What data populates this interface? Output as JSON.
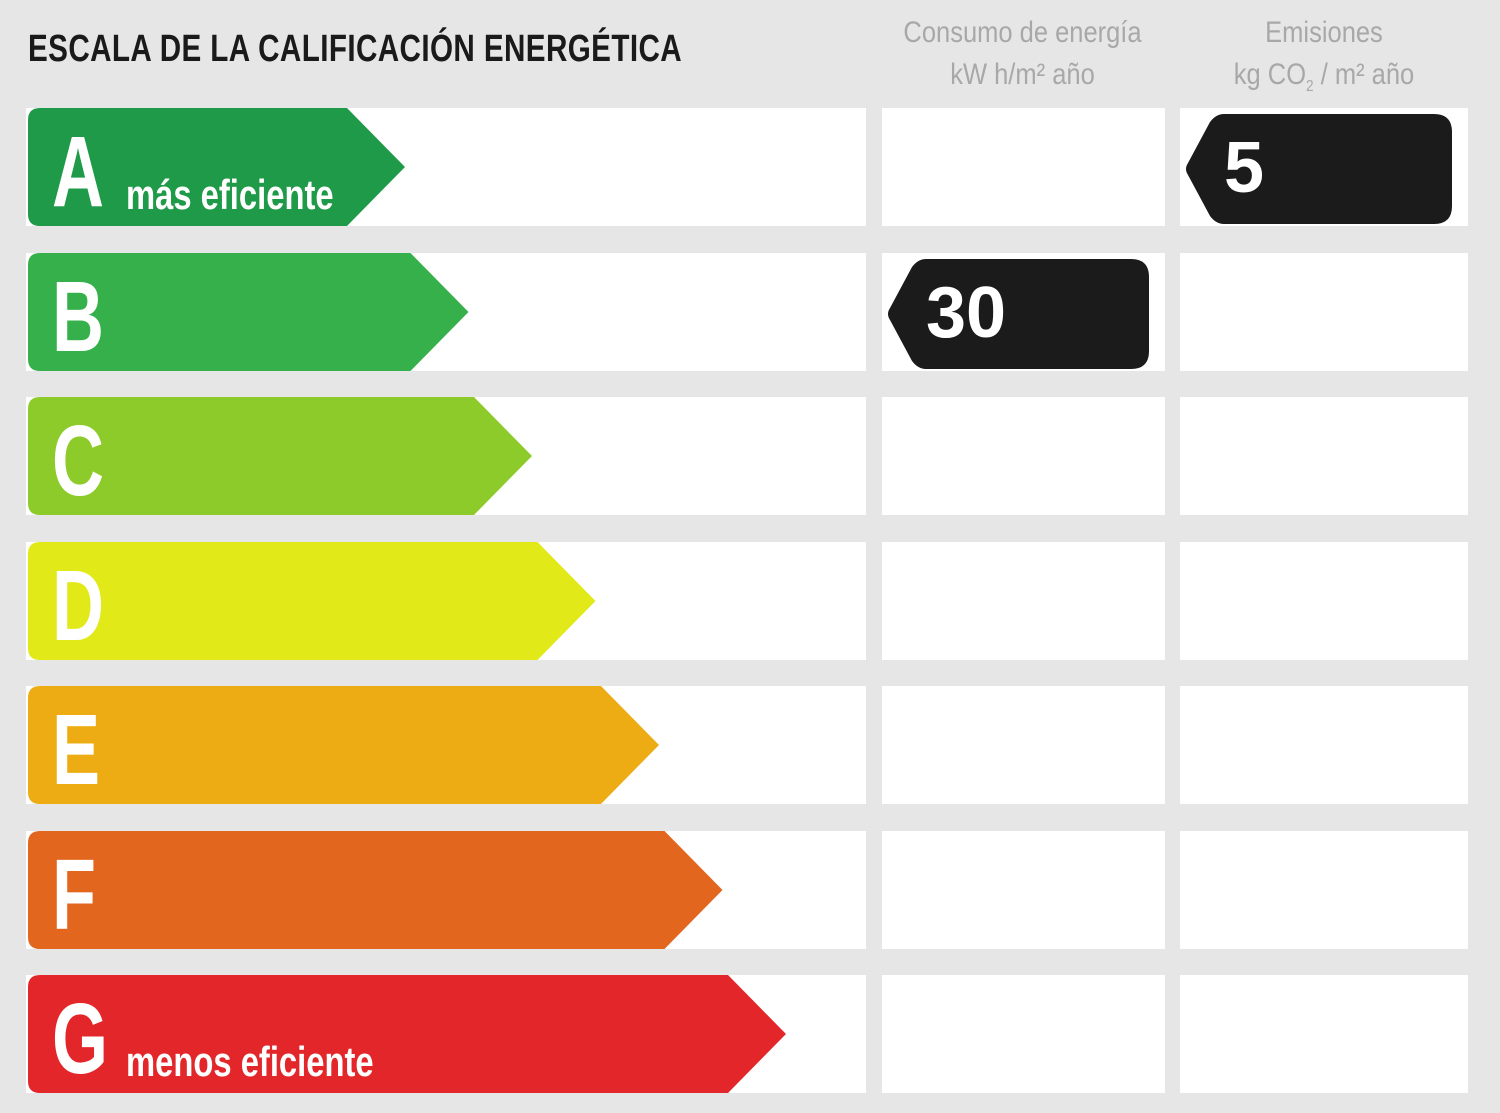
{
  "title": "ESCALA DE LA CALIFICACIÓN ENERGÉTICA",
  "columns": {
    "energy": {
      "line1": "Consumo de energía",
      "line2": "kW h/m² año"
    },
    "emissions": {
      "line1": "Emisiones",
      "line2_pre": "kg CO",
      "line2_sub": "2",
      "line2_post": " / m² año"
    }
  },
  "chart_data": {
    "type": "bar",
    "categories": [
      "A",
      "B",
      "C",
      "D",
      "E",
      "F",
      "G"
    ],
    "category_notes": {
      "A": "más eficiente",
      "G": "menos eficiente"
    },
    "colors": [
      "#1f9a48",
      "#36b04a",
      "#8ccb2a",
      "#e2e918",
      "#eeac14",
      "#e2661e",
      "#e3262a"
    ],
    "indicators": [
      {
        "column": "energy",
        "class": "B",
        "value": "30"
      },
      {
        "column": "emissions",
        "class": "A",
        "value": "5"
      }
    ]
  }
}
